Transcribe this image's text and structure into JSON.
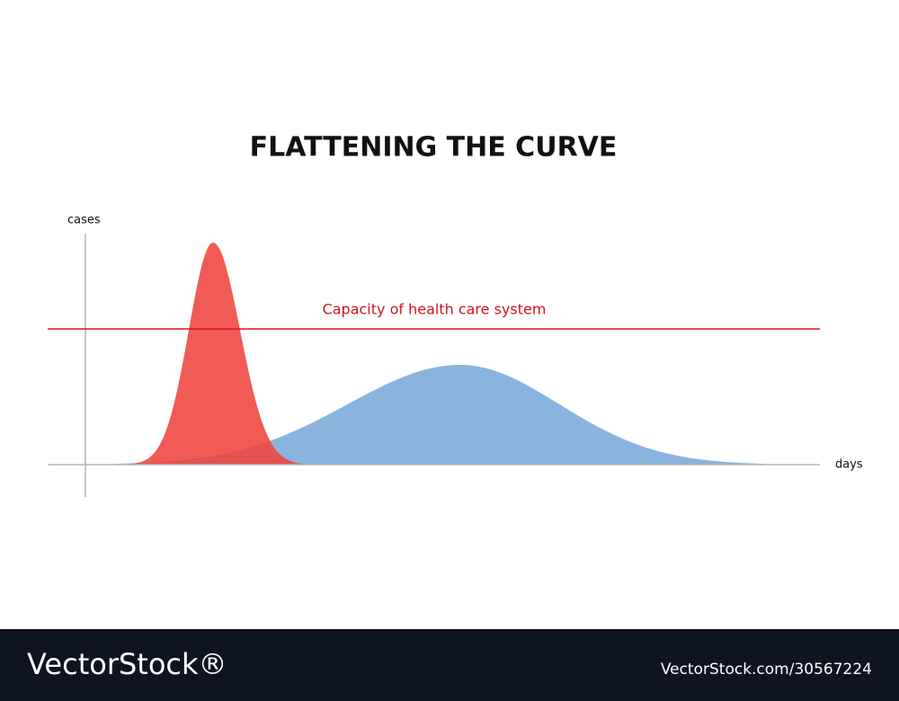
{
  "title": "FLATTENING THE CURVE",
  "axes": {
    "y_label": "cases",
    "x_label": "days"
  },
  "annotation": "Capacity of health care system",
  "footer": {
    "brand": "VectorStock®",
    "id": "VectorStock.com/30567224"
  }
}
